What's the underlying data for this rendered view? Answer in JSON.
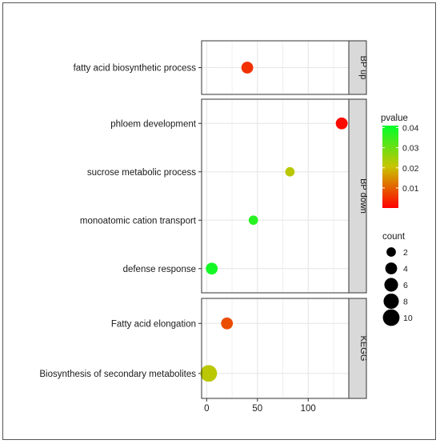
{
  "chart_data": {
    "type": "scatter",
    "xlim": [
      -5,
      140
    ],
    "x_ticks": [
      0,
      50,
      100
    ],
    "grid": true,
    "facets": [
      {
        "label": "BP up",
        "terms": [
          {
            "term": "fatty acid biosynthetic process",
            "x": 40,
            "count": 4,
            "pvalue": 0.005
          }
        ]
      },
      {
        "label": "BP down",
        "terms": [
          {
            "term": "phloem development",
            "x": 133,
            "count": 4,
            "pvalue": 0.001
          },
          {
            "term": "sucrose metabolic process",
            "x": 82,
            "count": 2,
            "pvalue": 0.022
          },
          {
            "term": "monoatomic cation transport",
            "x": 46,
            "count": 2,
            "pvalue": 0.037
          },
          {
            "term": "defense response",
            "x": 5,
            "count": 4,
            "pvalue": 0.039
          }
        ]
      },
      {
        "label": "KEGG",
        "terms": [
          {
            "term": "Fatty acid elongation",
            "x": 20,
            "count": 4,
            "pvalue": 0.008
          },
          {
            "term": "Biosynthesis of secondary metabolites",
            "x": 2,
            "count": 10,
            "pvalue": 0.022
          }
        ]
      }
    ],
    "legend_color": {
      "title": "pvalue",
      "ticks": [
        0.01,
        0.02,
        0.03,
        0.04
      ],
      "tick_labels": [
        "0.01",
        "0.02",
        "0.03",
        "0.04"
      ],
      "range": [
        0.0,
        0.041
      ],
      "colors": {
        "low": "#ff0000",
        "mid": "#c9c400",
        "high": "#00ff2a"
      }
    },
    "legend_size": {
      "title": "count",
      "values": [
        2,
        4,
        6,
        8,
        10
      ],
      "labels": [
        "2",
        "4",
        "6",
        "8",
        "10"
      ]
    },
    "colors": {
      "panel_bg": "#ffffff",
      "grid": "#e6e6e6",
      "strip_bg": "#d9d9d9",
      "border": "#333333"
    }
  }
}
